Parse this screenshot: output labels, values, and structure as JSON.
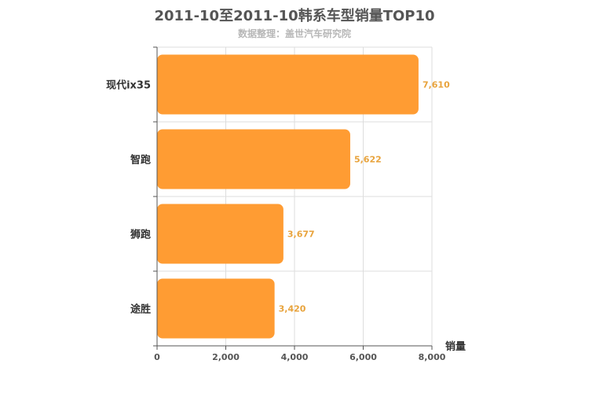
{
  "chart_data": {
    "type": "bar",
    "orientation": "horizontal",
    "title": "2011-10至2011-10韩系车型销量TOP10",
    "subtitle": "数据整理：盖世汽车研究院",
    "categories": [
      "现代ix35",
      "智跑",
      "狮跑",
      "途胜"
    ],
    "values": [
      7610,
      5622,
      3677,
      3420
    ],
    "value_labels": [
      "7,610",
      "5,622",
      "3,677",
      "3,420"
    ],
    "xlabel": "销量",
    "ylabel": "",
    "xlim": [
      0,
      8000
    ],
    "x_ticks": [
      0,
      2000,
      4000,
      6000,
      8000
    ],
    "x_tick_labels": [
      "0",
      "2,000",
      "4,000",
      "6,000",
      "8,000"
    ],
    "grid": true,
    "legend": "none",
    "colors": {
      "bar": "#ff9c33",
      "data_label": "#e8a33c",
      "grid": "#dddddd",
      "axis": "#555555"
    }
  }
}
